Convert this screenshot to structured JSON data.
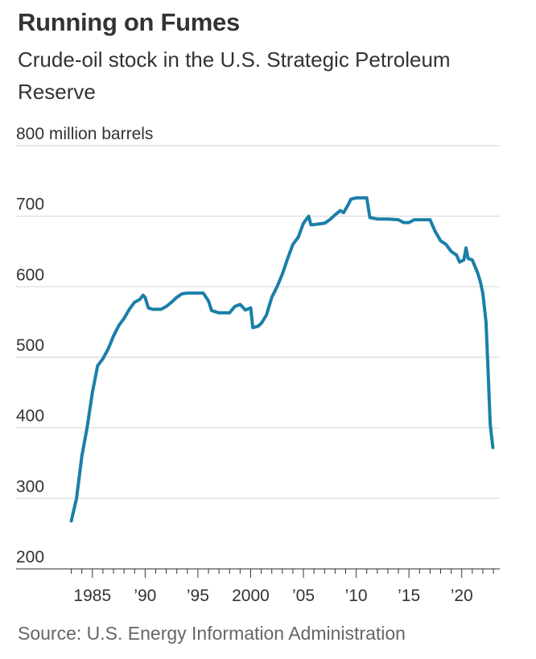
{
  "title": "Running on Fumes",
  "subtitle": "Crude-oil stock in the U.S. Strategic Petroleum Reserve",
  "source": "Source: U.S. Energy Information Administration",
  "colors": {
    "line": "#1a7fa8",
    "grid": "#d9d9d9",
    "text": "#333333",
    "source": "#666666"
  },
  "chart_data": {
    "type": "line",
    "title": "Running on Fumes",
    "subtitle": "Crude-oil stock in the U.S. Strategic Petroleum Reserve",
    "ylabel_unit": "million barrels",
    "ylim": [
      200,
      800
    ],
    "xlim": [
      1982.5,
      2023.3
    ],
    "grid": true,
    "y_ticks": [
      {
        "value": 800,
        "label": "800 million barrels"
      },
      {
        "value": 700,
        "label": "700"
      },
      {
        "value": 600,
        "label": "600"
      },
      {
        "value": 500,
        "label": "500"
      },
      {
        "value": 400,
        "label": "400"
      },
      {
        "value": 300,
        "label": "300"
      },
      {
        "value": 200,
        "label": "200"
      }
    ],
    "x_ticks": [
      {
        "value": 1985,
        "label": "1985"
      },
      {
        "value": 1990,
        "label": "’90"
      },
      {
        "value": 1995,
        "label": "’95"
      },
      {
        "value": 2000,
        "label": "2000"
      },
      {
        "value": 2005,
        "label": "’05"
      },
      {
        "value": 2010,
        "label": "’10"
      },
      {
        "value": 2015,
        "label": "’15"
      },
      {
        "value": 2020,
        "label": "’20"
      }
    ],
    "series": [
      {
        "points": [
          [
            1983.0,
            268
          ],
          [
            1983.5,
            300
          ],
          [
            1984.0,
            360
          ],
          [
            1984.5,
            400
          ],
          [
            1985.0,
            450
          ],
          [
            1985.5,
            488
          ],
          [
            1986.0,
            498
          ],
          [
            1986.5,
            512
          ],
          [
            1987.0,
            530
          ],
          [
            1987.5,
            545
          ],
          [
            1988.0,
            555
          ],
          [
            1988.5,
            568
          ],
          [
            1989.0,
            578
          ],
          [
            1989.5,
            582
          ],
          [
            1989.8,
            588
          ],
          [
            1990.0,
            585
          ],
          [
            1990.3,
            570
          ],
          [
            1990.7,
            568
          ],
          [
            1991.0,
            568
          ],
          [
            1991.5,
            568
          ],
          [
            1992.0,
            572
          ],
          [
            1992.5,
            578
          ],
          [
            1993.0,
            585
          ],
          [
            1993.5,
            590
          ],
          [
            1994.0,
            591
          ],
          [
            1994.5,
            591
          ],
          [
            1995.0,
            591
          ],
          [
            1995.5,
            591
          ],
          [
            1996.0,
            580
          ],
          [
            1996.3,
            566
          ],
          [
            1997.0,
            563
          ],
          [
            1997.5,
            563
          ],
          [
            1998.0,
            563
          ],
          [
            1998.5,
            572
          ],
          [
            1999.0,
            575
          ],
          [
            1999.5,
            567
          ],
          [
            2000.0,
            570
          ],
          [
            2000.2,
            542
          ],
          [
            2000.7,
            544
          ],
          [
            2001.0,
            548
          ],
          [
            2001.5,
            560
          ],
          [
            2002.0,
            585
          ],
          [
            2002.5,
            600
          ],
          [
            2003.0,
            618
          ],
          [
            2003.5,
            640
          ],
          [
            2004.0,
            660
          ],
          [
            2004.5,
            670
          ],
          [
            2005.0,
            690
          ],
          [
            2005.5,
            700
          ],
          [
            2005.7,
            688
          ],
          [
            2006.0,
            688
          ],
          [
            2007.0,
            690
          ],
          [
            2007.5,
            695
          ],
          [
            2008.0,
            702
          ],
          [
            2008.5,
            708
          ],
          [
            2008.8,
            705
          ],
          [
            2009.2,
            715
          ],
          [
            2009.5,
            724
          ],
          [
            2010.0,
            726
          ],
          [
            2011.0,
            726
          ],
          [
            2011.3,
            698
          ],
          [
            2012.0,
            696
          ],
          [
            2013.0,
            696
          ],
          [
            2014.0,
            695
          ],
          [
            2014.5,
            691
          ],
          [
            2015.0,
            691
          ],
          [
            2015.5,
            695
          ],
          [
            2016.5,
            695
          ],
          [
            2017.0,
            695
          ],
          [
            2017.5,
            678
          ],
          [
            2018.0,
            665
          ],
          [
            2018.5,
            660
          ],
          [
            2019.0,
            650
          ],
          [
            2019.5,
            645
          ],
          [
            2019.8,
            635
          ],
          [
            2020.2,
            638
          ],
          [
            2020.4,
            655
          ],
          [
            2020.6,
            640
          ],
          [
            2021.0,
            638
          ],
          [
            2021.5,
            620
          ],
          [
            2021.8,
            605
          ],
          [
            2022.0,
            590
          ],
          [
            2022.3,
            550
          ],
          [
            2022.5,
            480
          ],
          [
            2022.7,
            405
          ],
          [
            2022.95,
            372
          ]
        ]
      }
    ]
  }
}
